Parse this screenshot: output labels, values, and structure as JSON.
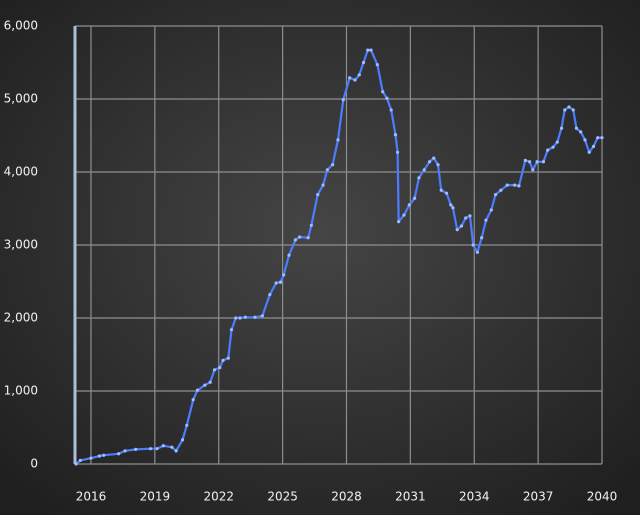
{
  "chart_data": {
    "type": "line",
    "x": [
      2015.3,
      2015.5,
      2016.0,
      2016.4,
      2016.6,
      2017.3,
      2017.6,
      2018.1,
      2018.8,
      2019.1,
      2019.4,
      2019.8,
      2020.0,
      2020.3,
      2020.5,
      2020.8,
      2021.0,
      2021.35,
      2021.6,
      2021.8,
      2022.05,
      2022.2,
      2022.45,
      2022.6,
      2022.8,
      2023.0,
      2023.25,
      2023.7,
      2024.05,
      2024.4,
      2024.7,
      2024.9,
      2025.05,
      2025.3,
      2025.6,
      2025.8,
      2026.2,
      2026.35,
      2026.65,
      2026.9,
      2027.1,
      2027.35,
      2027.6,
      2027.85,
      2028.15,
      2028.4,
      2028.6,
      2028.8,
      2029.0,
      2029.15,
      2029.45,
      2029.7,
      2029.9,
      2030.1,
      2030.3,
      2030.4,
      2030.45,
      2030.7,
      2030.95,
      2031.2,
      2031.4,
      2031.65,
      2031.9,
      2032.1,
      2032.3,
      2032.45,
      2032.7,
      2032.9,
      2033.0,
      2033.2,
      2033.4,
      2033.6,
      2033.8,
      2033.95,
      2034.15,
      2034.35,
      2034.55,
      2034.8,
      2035.0,
      2035.25,
      2035.55,
      2035.9,
      2036.1,
      2036.4,
      2036.6,
      2036.75,
      2036.95,
      2037.25,
      2037.45,
      2037.7,
      2037.9,
      2038.1,
      2038.25,
      2038.45,
      2038.65,
      2038.8,
      2039.0,
      2039.2,
      2039.4,
      2039.6,
      2039.8,
      2040.0
    ],
    "series": [
      {
        "color": "#4a7dff",
        "values": [
          0,
          50,
          80,
          110,
          120,
          140,
          180,
          200,
          210,
          210,
          250,
          230,
          180,
          330,
          530,
          880,
          1010,
          1080,
          1120,
          1290,
          1320,
          1420,
          1450,
          1840,
          2000,
          2000,
          2010,
          2010,
          2030,
          2320,
          2480,
          2490,
          2590,
          2860,
          3070,
          3110,
          3100,
          3270,
          3690,
          3820,
          4030,
          4100,
          4440,
          4990,
          5290,
          5260,
          5330,
          5500,
          5670,
          5670,
          5470,
          5100,
          5010,
          4850,
          4510,
          4270,
          3320,
          3410,
          3550,
          3640,
          3920,
          4030,
          4140,
          4190,
          4100,
          3750,
          3710,
          3550,
          3510,
          3210,
          3260,
          3370,
          3400,
          3000,
          2900,
          3100,
          3340,
          3480,
          3690,
          3750,
          3820,
          3820,
          3810,
          4160,
          4140,
          4030,
          4140,
          4140,
          4300,
          4340,
          4410,
          4600,
          4850,
          4890,
          4850,
          4600,
          4550,
          4440,
          4270,
          4350,
          4470,
          4470
        ]
      }
    ],
    "xlim": [
      2015.25,
      2040
    ],
    "ylim": [
      0,
      6000
    ],
    "xticks": [
      2016,
      2019,
      2022,
      2025,
      2028,
      2031,
      2034,
      2037,
      2040
    ],
    "yticks": [
      0,
      {
        "value": 1000,
        "label": "1,000"
      },
      {
        "value": 2000,
        "label": "2,000"
      },
      {
        "value": 3000,
        "label": "3,000"
      },
      {
        "value": 4000,
        "label": "4,000"
      },
      {
        "value": 5000,
        "label": "5,000"
      },
      {
        "value": 6000,
        "label": "6,000"
      }
    ],
    "grid": true
  }
}
